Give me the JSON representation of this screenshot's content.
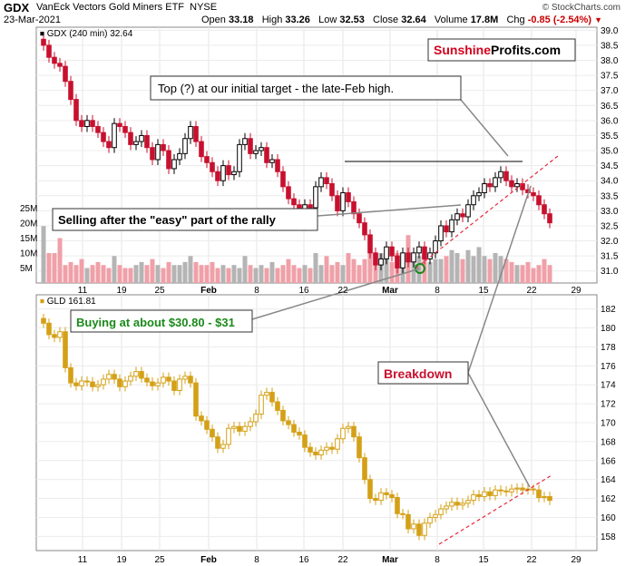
{
  "header": {
    "ticker": "GDX",
    "name": "VanEck Vectors Gold Miners ETF",
    "exchange": "NYSE",
    "date": "23-Mar-2021",
    "copyright": "© StockCharts.com",
    "open_label": "Open",
    "open": "33.18",
    "high_label": "High",
    "high": "33.26",
    "low_label": "Low",
    "low": "32.53",
    "close_label": "Close",
    "close": "32.64",
    "volume_label": "Volume",
    "volume": "17.8M",
    "chg_label": "Chg",
    "chg": "-0.85 (-2.54%)"
  },
  "logo": {
    "part1": "Sunshine",
    "part2": "Profits.com",
    "color1": "#d6001c"
  },
  "annotations": {
    "top": "Top (?) at our initial target - the late-Feb high.",
    "selling": "Selling after the \"easy\" part of the rally",
    "buying": "Buying at about $30.80 - $31",
    "breakdown": "Breakdown"
  },
  "colors": {
    "up": "#000000",
    "down": "#c8102e",
    "gld": "#d4a017",
    "vol_up": "#b4b4b4",
    "vol_down": "#f0a0a8",
    "trendline": "#e8283c"
  },
  "chart_data": [
    {
      "type": "candlestick",
      "title": "GDX (240 min) 32.64",
      "legend": "GDX (240 min)",
      "legend_value": "32.64",
      "ylim": [
        30.6,
        39.1
      ],
      "yticks": [
        "31.0",
        "31.5",
        "32.0",
        "32.5",
        "33.0",
        "33.5",
        "34.0",
        "34.5",
        "35.0",
        "35.5",
        "36.0",
        "36.5",
        "37.0",
        "37.5",
        "38.0",
        "38.5",
        "39.0"
      ],
      "xticks": [
        "11",
        "19",
        "25",
        "Feb",
        "8",
        "16",
        "22",
        "Mar",
        "8",
        "15",
        "22",
        "29"
      ],
      "volume_ticks": [
        "5M",
        "10M",
        "15M",
        "20M",
        "25M"
      ],
      "closes": [
        38.5,
        38.1,
        37.9,
        37.8,
        37.3,
        36.7,
        36.0,
        35.8,
        36.0,
        35.8,
        35.6,
        35.3,
        35.1,
        35.9,
        35.8,
        35.6,
        35.2,
        35.3,
        35.5,
        35.1,
        34.7,
        35.2,
        35.0,
        34.4,
        34.7,
        34.9,
        35.4,
        35.8,
        35.3,
        34.8,
        34.6,
        34.3,
        34.0,
        34.5,
        34.2,
        34.3,
        35.2,
        35.4,
        34.9,
        35.0,
        35.1,
        34.6,
        34.7,
        34.3,
        33.8,
        33.4,
        33.2,
        33.0,
        33.2,
        33.1,
        33.8,
        34.1,
        33.9,
        33.5,
        33.0,
        33.6,
        33.3,
        32.9,
        32.6,
        32.2,
        31.6,
        31.2,
        31.4,
        31.8,
        31.5,
        31.1,
        31.6,
        31.3,
        31.6,
        31.8,
        31.4,
        31.6,
        32.0,
        32.5,
        32.3,
        32.7,
        32.9,
        32.8,
        33.2,
        33.5,
        33.6,
        33.9,
        33.8,
        34.1,
        34.3,
        34.0,
        33.8,
        33.9,
        33.7,
        33.6,
        33.5,
        33.2,
        32.9,
        32.6
      ],
      "volumes": [
        19,
        10,
        10,
        15,
        6,
        7,
        6,
        8,
        5,
        6,
        7,
        6,
        5,
        9,
        6,
        5,
        5,
        6,
        7,
        6,
        8,
        6,
        5,
        7,
        6,
        6,
        7,
        9,
        7,
        6,
        6,
        7,
        5,
        6,
        5,
        6,
        5,
        9,
        6,
        5,
        6,
        5,
        7,
        5,
        6,
        8,
        6,
        5,
        6,
        5,
        10,
        6,
        9,
        6,
        7,
        6,
        10,
        8,
        6,
        8,
        13,
        9,
        10,
        8,
        7,
        10,
        6,
        16,
        8,
        9,
        12,
        7,
        8,
        8,
        9,
        11,
        10,
        8,
        11,
        9,
        12,
        9,
        8,
        10,
        9,
        8,
        7,
        6,
        6,
        7,
        5,
        6,
        8,
        6
      ]
    },
    {
      "type": "candlestick",
      "title": "GLD 161.81",
      "legend": "GLD",
      "legend_value": "161.81",
      "ylim": [
        156.5,
        183.5
      ],
      "yticks": [
        "158",
        "160",
        "162",
        "164",
        "166",
        "168",
        "170",
        "172",
        "174",
        "176",
        "178",
        "180",
        "182"
      ],
      "xticks": [
        "11",
        "19",
        "25",
        "Feb",
        "8",
        "16",
        "22",
        "Mar",
        "8",
        "15",
        "22",
        "29"
      ],
      "closes": [
        180.5,
        179.3,
        179.0,
        179.6,
        175.8,
        174.2,
        173.9,
        174.4,
        174.3,
        173.8,
        174.0,
        174.6,
        175.1,
        174.6,
        173.8,
        174.4,
        174.9,
        175.4,
        174.7,
        174.3,
        173.9,
        174.2,
        174.8,
        174.4,
        173.4,
        174.6,
        174.9,
        174.2,
        170.7,
        170.2,
        169.3,
        168.5,
        167.3,
        167.7,
        169.4,
        169.6,
        169.1,
        169.6,
        170.1,
        170.9,
        172.9,
        173.2,
        172.2,
        171.3,
        170.2,
        169.8,
        169.0,
        168.7,
        167.4,
        166.9,
        166.6,
        167.1,
        167.4,
        167.2,
        168.3,
        169.4,
        169.6,
        168.5,
        166.3,
        164.0,
        162.0,
        161.8,
        162.6,
        162.4,
        162.1,
        160.4,
        160.3,
        158.8,
        159.3,
        158.1,
        159.4,
        160.0,
        160.3,
        160.9,
        161.2,
        161.6,
        161.3,
        161.5,
        161.8,
        162.4,
        162.2,
        162.7,
        162.3,
        162.9,
        162.8,
        162.7,
        163.0,
        163.1,
        162.9,
        163.0,
        162.9,
        162.1,
        162.2,
        161.8
      ]
    }
  ]
}
